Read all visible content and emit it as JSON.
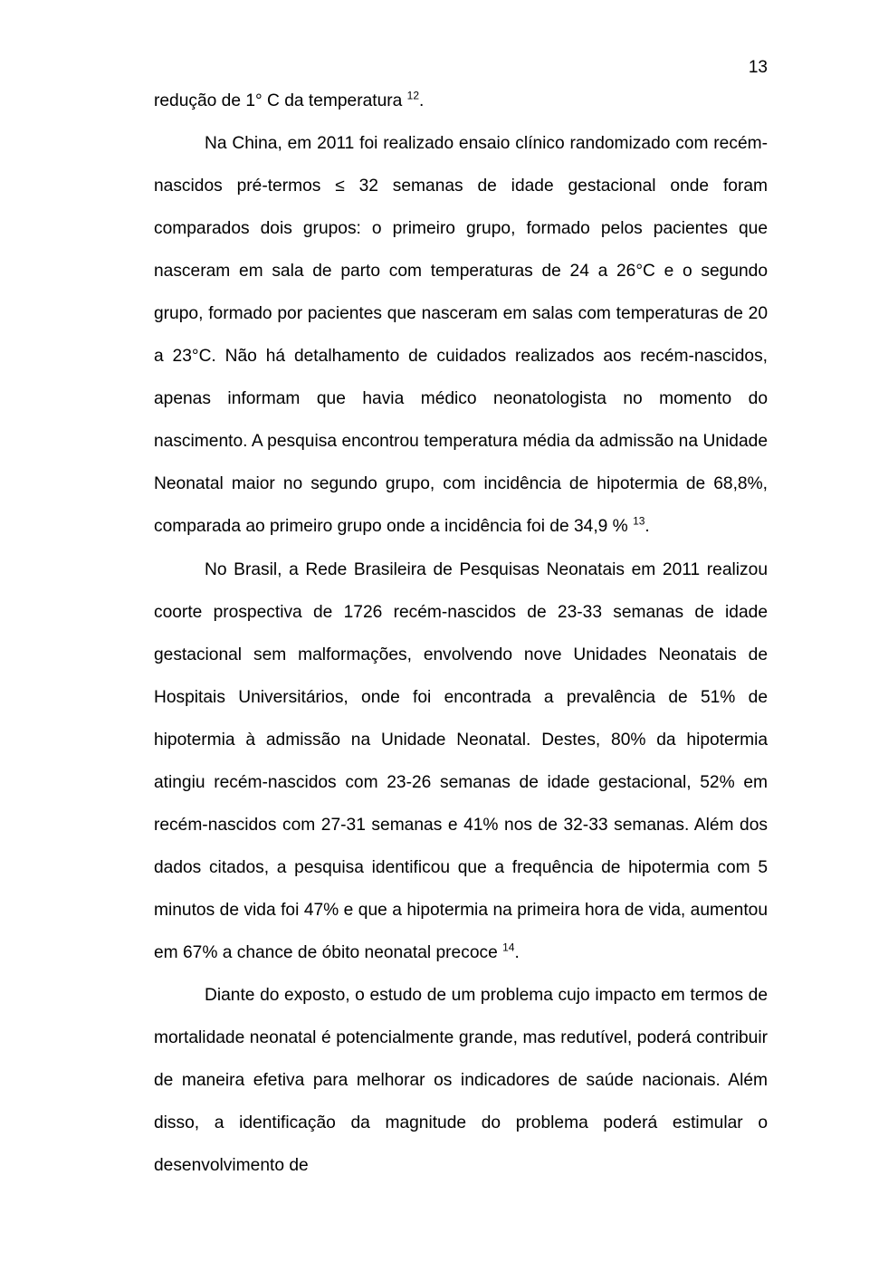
{
  "page": {
    "number": "13",
    "background_color": "#ffffff",
    "text_color": "#000000",
    "font_family": "Arial",
    "body_fontsize": 19.2,
    "line_height": 2.45
  },
  "paragraphs": [
    {
      "text_parts": [
        "redução de 1° C da temperatura ",
        "12",
        "."
      ],
      "sup_index": 1,
      "indent": false
    },
    {
      "text_parts": [
        "Na China, em 2011 foi realizado ensaio clínico randomizado com recém-nascidos pré-termos ≤ 32 semanas de idade gestacional onde foram comparados dois grupos: o primeiro grupo, formado pelos pacientes que nasceram em sala de parto com temperaturas de 24 a 26°C e o segundo grupo, formado por pacientes que nasceram em salas com temperaturas de 20 a 23°C. Não há detalhamento de cuidados realizados aos recém-nascidos, apenas informam que havia médico neonatologista no momento do nascimento. A pesquisa encontrou temperatura média da admissão na Unidade Neonatal maior no segundo grupo, com incidência de hipotermia de 68,8%, comparada ao primeiro grupo onde a incidência foi de 34,9 % ",
        "13",
        "."
      ],
      "sup_index": 1,
      "indent": true
    },
    {
      "text_parts": [
        "No Brasil, a Rede Brasileira de Pesquisas Neonatais em 2011 realizou coorte prospectiva de 1726 recém-nascidos de 23-33 semanas de idade gestacional sem malformações, envolvendo nove Unidades Neonatais de Hospitais Universitários, onde foi encontrada a prevalência de 51% de hipotermia à admissão na Unidade Neonatal. Destes, 80% da hipotermia atingiu recém-nascidos com 23-26 semanas de idade gestacional, 52% em recém-nascidos com 27-31 semanas e 41% nos de 32-33 semanas. Além dos dados citados, a pesquisa identificou que a frequência de hipotermia com 5 minutos de vida foi 47% e que a hipotermia na primeira hora de vida, aumentou em 67% a chance de óbito neonatal precoce ",
        "14",
        "."
      ],
      "sup_index": 1,
      "indent": true
    },
    {
      "text_parts": [
        "Diante do exposto, o estudo de um problema cujo impacto em termos de mortalidade neonatal é potencialmente grande, mas redutível, poderá contribuir de maneira efetiva para melhorar os indicadores de saúde nacionais. Além disso, a identificação da magnitude do problema poderá estimular o desenvolvimento de"
      ],
      "sup_index": -1,
      "indent": true
    }
  ]
}
